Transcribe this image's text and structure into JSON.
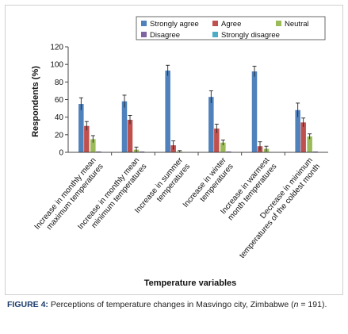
{
  "chart_data": {
    "type": "bar",
    "xlabel": "Temperature variables",
    "ylabel": "Respondents (%)",
    "ylim": [
      0,
      120
    ],
    "yticks": [
      0,
      20,
      40,
      60,
      80,
      100,
      120
    ],
    "grid": false,
    "legend_position": "top-right",
    "categories": [
      [
        "Increase in monthly mean",
        "maximum temperatures"
      ],
      [
        "Increase in monthly mean",
        "minimum temperatures"
      ],
      [
        "Increase in summer",
        "temperatures"
      ],
      [
        "Increase in winter",
        "temperatures"
      ],
      [
        "Increase in warmest",
        "month temperatures"
      ],
      [
        "Decrease in minimum",
        "temperatures of the coldest month"
      ]
    ],
    "series": [
      {
        "name": "Strongly agree",
        "color": "#4f81bd",
        "values": [
          55,
          58,
          93,
          63,
          92,
          48
        ],
        "errors": [
          7,
          7,
          6,
          7,
          6,
          8
        ]
      },
      {
        "name": "Agree",
        "color": "#c0504d",
        "values": [
          30,
          37,
          8,
          27,
          7,
          34
        ],
        "errors": [
          5,
          5,
          5,
          5,
          5,
          5
        ]
      },
      {
        "name": "Neutral",
        "color": "#9bbb59",
        "values": [
          15,
          3,
          1,
          11,
          4,
          18
        ],
        "errors": [
          4,
          3,
          1,
          3,
          3,
          3
        ]
      },
      {
        "name": "Disagree",
        "color": "#8064a2",
        "values": [
          1,
          1,
          0,
          1,
          0,
          1
        ],
        "errors": [
          0,
          0,
          0,
          0,
          0,
          0
        ]
      },
      {
        "name": "Strongly disagree",
        "color": "#4bacc6",
        "values": [
          0,
          0,
          0,
          0,
          0,
          0
        ],
        "errors": [
          0,
          0,
          0,
          0,
          0,
          0
        ]
      }
    ]
  },
  "caption": {
    "label": "FIGURE 4:",
    "text": " Perceptions of temperature changes in Masvingo city, Zimbabwe (",
    "n_symbol": "n",
    "n_value": " = 191)."
  }
}
